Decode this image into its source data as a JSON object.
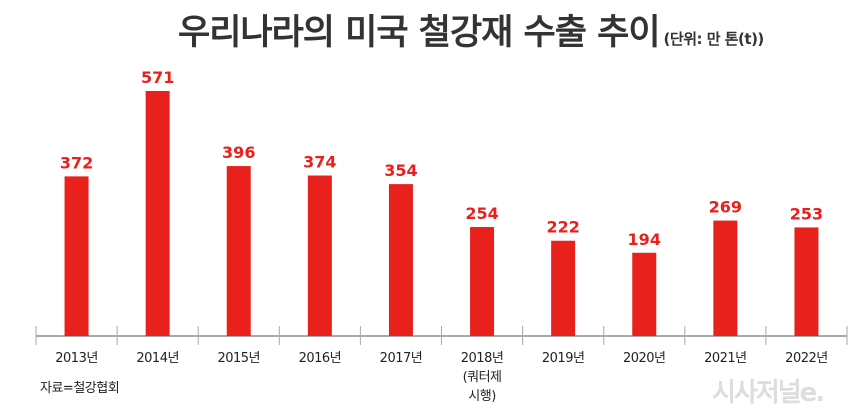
{
  "chart_data": {
    "type": "bar",
    "title": "우리나라의 미국 철강재 수출 추이",
    "unit": "(단위: 만 톤(t))",
    "categories": [
      "2013년",
      "2014년",
      "2015년",
      "2016년",
      "2017년",
      "2018년\n(쿼터제\n시행)",
      "2019년",
      "2020년",
      "2021년",
      "2022년"
    ],
    "values": [
      372,
      571,
      396,
      374,
      354,
      254,
      222,
      194,
      269,
      253
    ],
    "ylim": [
      0,
      571
    ],
    "grid": false,
    "bar_color": "#e8211d",
    "label_color": "#e8211d"
  },
  "source": "자료=철강협회",
  "logo": "시사저널e."
}
